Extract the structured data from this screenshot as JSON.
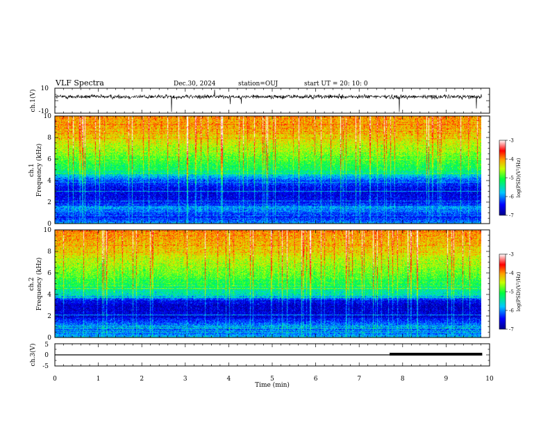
{
  "header": {
    "title": "VLF Spectra",
    "date": "Dec.30, 2024",
    "station": "station=OUJ",
    "start": "start  UT  =   20: 10: 0"
  },
  "chart_data": [
    {
      "type": "line",
      "name": "waveform-ch1",
      "ylabel": "ch.1(V)",
      "ylim": [
        -10,
        10
      ],
      "yticks": [
        "10",
        "-10"
      ],
      "xlim": [
        0,
        10
      ],
      "baseline": 3.2,
      "noise_amplitude": 1.2,
      "data_end_min": 9.83
    },
    {
      "type": "heatmap",
      "name": "spectrogram-ch1",
      "ylabel": "ch.1",
      "ylabel2": "Frequency (kHz)",
      "ylim": [
        0,
        10
      ],
      "yticks": [
        "0",
        "2",
        "4",
        "6",
        "8",
        "10"
      ],
      "xlim": [
        0,
        10
      ],
      "data_end_min": 9.83,
      "colorbar": {
        "label": "log(PSD)(V²/Hz)",
        "range": [
          -7,
          -3
        ],
        "ticks": [
          "-3",
          "-4",
          "-5",
          "-6",
          "-7"
        ]
      },
      "spectral_profile": [
        {
          "freq_khz": 0.0,
          "log_psd": -5.9
        },
        {
          "freq_khz": 0.5,
          "log_psd": -6.4
        },
        {
          "freq_khz": 1.0,
          "log_psd": -6.2
        },
        {
          "freq_khz": 1.5,
          "log_psd": -5.9
        },
        {
          "freq_khz": 2.0,
          "log_psd": -6.5
        },
        {
          "freq_khz": 3.0,
          "log_psd": -6.6
        },
        {
          "freq_khz": 4.0,
          "log_psd": -6.2
        },
        {
          "freq_khz": 4.5,
          "log_psd": -5.7
        },
        {
          "freq_khz": 5.0,
          "log_psd": -5.2
        },
        {
          "freq_khz": 6.0,
          "log_psd": -4.9
        },
        {
          "freq_khz": 7.0,
          "log_psd": -4.6
        },
        {
          "freq_khz": 8.0,
          "log_psd": -4.3
        },
        {
          "freq_khz": 9.0,
          "log_psd": -4.1
        },
        {
          "freq_khz": 10.0,
          "log_psd": -4.0
        }
      ]
    },
    {
      "type": "heatmap",
      "name": "spectrogram-ch2",
      "ylabel": "ch.2",
      "ylabel2": "Frequency (kHz)",
      "ylim": [
        0,
        10
      ],
      "yticks": [
        "0",
        "2",
        "4",
        "6",
        "8",
        "10"
      ],
      "xlim": [
        0,
        10
      ],
      "data_end_min": 9.83,
      "colorbar": {
        "label": "log(PSD)(V²/Hz)",
        "range": [
          -7,
          -3
        ],
        "ticks": [
          "-3",
          "-4",
          "-5",
          "-6",
          "-7"
        ]
      },
      "spectral_profile": [
        {
          "freq_khz": 0.0,
          "log_psd": -5.8
        },
        {
          "freq_khz": 0.5,
          "log_psd": -6.2
        },
        {
          "freq_khz": 1.0,
          "log_psd": -6.0
        },
        {
          "freq_khz": 1.5,
          "log_psd": -6.3
        },
        {
          "freq_khz": 2.0,
          "log_psd": -6.6
        },
        {
          "freq_khz": 3.0,
          "log_psd": -6.7
        },
        {
          "freq_khz": 3.5,
          "log_psd": -6.3
        },
        {
          "freq_khz": 4.0,
          "log_psd": -5.6
        },
        {
          "freq_khz": 5.0,
          "log_psd": -5.1
        },
        {
          "freq_khz": 6.0,
          "log_psd": -4.8
        },
        {
          "freq_khz": 7.0,
          "log_psd": -4.6
        },
        {
          "freq_khz": 8.0,
          "log_psd": -4.3
        },
        {
          "freq_khz": 9.0,
          "log_psd": -4.1
        },
        {
          "freq_khz": 10.0,
          "log_psd": -4.0
        }
      ]
    },
    {
      "type": "line",
      "name": "waveform-ch3",
      "ylabel": "ch.3(V)",
      "ylim": [
        -5,
        5
      ],
      "yticks": [
        "5",
        "0",
        "-5"
      ],
      "xlim": [
        0,
        10
      ],
      "baseline": 0,
      "thick_from_min": 7.7,
      "data_end_min": 9.83,
      "xlabel": "Time  (min)",
      "xticks": [
        "0",
        "1",
        "2",
        "3",
        "4",
        "5",
        "6",
        "7",
        "8",
        "9",
        "10"
      ]
    }
  ]
}
